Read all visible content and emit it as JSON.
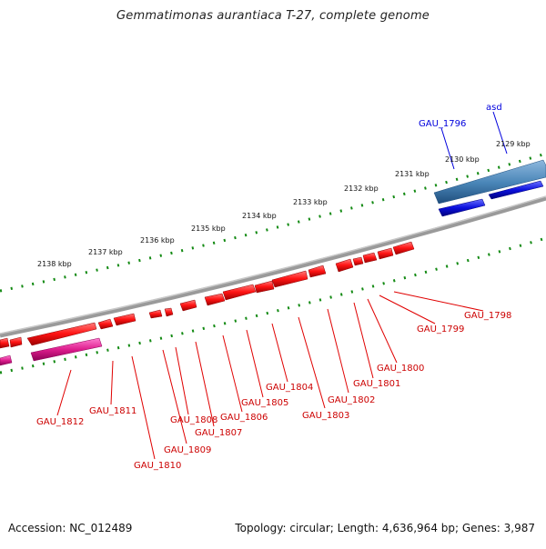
{
  "title": "Gemmatimonas aurantiaca T-27, complete genome",
  "footer": {
    "accession": "Accession: NC_012489",
    "topology": "Topology: circular; Length: 4,636,964 bp; Genes: 3,987"
  },
  "colors": {
    "backbone": "#8f8f8f",
    "ticks": "#138a13",
    "forward_gene": "#4a86b8",
    "forward_gene_2": "#0b10dd",
    "reverse_gene": "#ff1414",
    "reverse_gene_dark": "#b80000",
    "pink_gene": "#dd1d8d",
    "red_label": "#cc0000",
    "blue_label": "#0000cc"
  },
  "scale": {
    "labels": [
      "2129 kbp",
      "2130 kbp",
      "2131 kbp",
      "2132 kbp",
      "2133 kbp",
      "2134 kbp",
      "2135 kbp",
      "2136 kbp",
      "2137 kbp",
      "2138 kbp"
    ]
  },
  "labels": {
    "forward": [
      "asd",
      "GAU_1796"
    ],
    "reverse": [
      "GAU_1798",
      "GAU_1799",
      "GAU_1800",
      "GAU_1801",
      "GAU_1802",
      "GAU_1803",
      "GAU_1804",
      "GAU_1805",
      "GAU_1806",
      "GAU_1807",
      "GAU_1808",
      "GAU_1809",
      "GAU_1810",
      "GAU_1811",
      "GAU_1812"
    ]
  }
}
